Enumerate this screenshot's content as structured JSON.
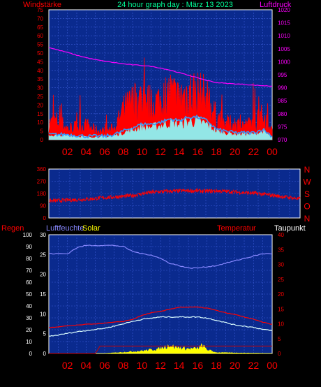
{
  "title": "24 hour graph day : März 13 2023",
  "chart_data": [
    {
      "type": "line",
      "name": "wind-pressure",
      "left_label": "Windstärke",
      "right_label": "Luftdruck",
      "ylim_left": [
        0,
        75
      ],
      "yticks_left": [
        "0",
        "5",
        "10",
        "15",
        "20",
        "25",
        "30",
        "35",
        "40",
        "45",
        "50",
        "55",
        "60",
        "65",
        "70",
        "75"
      ],
      "ylim_right": [
        970,
        1020
      ],
      "yticks_right": [
        "970",
        "975",
        "980",
        "985",
        "990",
        "995",
        "1000",
        "1005",
        "1010",
        "1015",
        "1020"
      ],
      "xticks": [
        "02",
        "04",
        "06",
        "08",
        "10",
        "12",
        "14",
        "16",
        "18",
        "20",
        "22",
        "00"
      ],
      "series": [
        {
          "key": "gust",
          "color": "#ff0000",
          "x": [
            0,
            1,
            2,
            3,
            4,
            5,
            6,
            7,
            7.5,
            8,
            9,
            10,
            11,
            12,
            13,
            14,
            15,
            16,
            17,
            18,
            19,
            20,
            21,
            22,
            23,
            23.5,
            24
          ],
          "y": [
            10,
            12,
            7,
            8,
            9,
            6,
            5,
            7,
            12,
            18,
            23,
            26,
            22,
            24,
            29,
            25,
            30,
            29,
            25,
            14,
            10,
            10,
            9,
            10,
            15,
            12,
            5
          ]
        },
        {
          "key": "wind",
          "color": "#3399ff",
          "x": [
            0,
            2,
            4,
            6,
            7,
            8,
            9,
            10,
            11,
            12,
            13,
            14,
            15,
            16,
            17,
            18,
            19,
            20,
            21,
            22,
            23,
            24
          ],
          "y": [
            3,
            3,
            2,
            2,
            3,
            5,
            7,
            9,
            9,
            10,
            12,
            11,
            13,
            13,
            11,
            6,
            5,
            4,
            4,
            4,
            6,
            2
          ]
        },
        {
          "key": "pressure",
          "color": "#ff00ff",
          "x": [
            0,
            1,
            2,
            3,
            4,
            5,
            6,
            7,
            8,
            9,
            10,
            11,
            12,
            13,
            14,
            15,
            16,
            17,
            18,
            19,
            20,
            21,
            22,
            23,
            24
          ],
          "y": [
            1005.5,
            1004.5,
            1003.6,
            1002.5,
            1001.6,
            1000.8,
            1000.2,
            999.7,
            999.2,
            998.8,
            998.6,
            998.2,
            997.6,
            996.8,
            995.8,
            994.8,
            993.8,
            992.8,
            992.0,
            991.7,
            991.5,
            991.3,
            991.0,
            990.8,
            990.6
          ]
        }
      ]
    },
    {
      "type": "line",
      "name": "wind-direction",
      "ylim": [
        0,
        360
      ],
      "yticks": [
        "0",
        "90",
        "180",
        "270",
        "360"
      ],
      "direction_labels": [
        "N",
        "W",
        "S",
        "O",
        "N"
      ],
      "series": [
        {
          "key": "direction",
          "color": "#ff0000",
          "x": [
            0,
            1,
            2,
            3,
            4,
            5,
            6,
            7,
            8,
            9,
            10,
            11,
            12,
            13,
            14,
            15,
            16,
            17,
            18,
            19,
            20,
            21,
            22,
            23,
            24
          ],
          "y": [
            125,
            128,
            132,
            135,
            140,
            148,
            152,
            158,
            165,
            180,
            190,
            195,
            198,
            200,
            200,
            197,
            200,
            195,
            190,
            185,
            180,
            170,
            160,
            150,
            140
          ]
        }
      ]
    },
    {
      "type": "line",
      "name": "humidity-temp",
      "left_label": "Regen",
      "label_humidity": "Luftfeuchte",
      "label_solar": "Solar",
      "label_temp": "Temperatur",
      "label_dew": "Taupunkt",
      "ylim_rain": [
        0,
        100
      ],
      "yticks_rain": [
        "0",
        "10",
        "20",
        "30",
        "40",
        "50",
        "60",
        "70",
        "80",
        "90",
        "100"
      ],
      "ylim_humidity": [
        0,
        30
      ],
      "yticks_humidity": [
        "0",
        "5",
        "10",
        "15",
        "20",
        "25",
        "30"
      ],
      "ylim_temp": [
        0,
        40
      ],
      "yticks_temp": [
        "0",
        "5",
        "10",
        "15",
        "20",
        "25",
        "30",
        "35",
        "40"
      ],
      "xticks": [
        "02",
        "04",
        "06",
        "08",
        "10",
        "12",
        "14",
        "16",
        "18",
        "20",
        "22",
        "00"
      ],
      "series": [
        {
          "key": "humidity",
          "color": "#8888ff",
          "x": [
            0,
            1,
            2,
            3,
            4,
            5,
            6,
            7,
            8,
            9,
            10,
            11,
            12,
            13,
            14,
            15,
            16,
            17,
            18,
            19,
            20,
            21,
            22,
            23,
            24
          ],
          "y": [
            84,
            84,
            84,
            89,
            91,
            91,
            91,
            91,
            90,
            86,
            84,
            83,
            80,
            76,
            74,
            72,
            72,
            73,
            74,
            76,
            78,
            80,
            82,
            84,
            84
          ]
        },
        {
          "key": "temp",
          "color": "#ff0000",
          "x": [
            0,
            1,
            2,
            3,
            4,
            5,
            6,
            7,
            8,
            9,
            10,
            11,
            12,
            13,
            14,
            15,
            16,
            17,
            18,
            19,
            20,
            21,
            22,
            23,
            24
          ],
          "y": [
            8.7,
            8.9,
            9.3,
            9.5,
            9.8,
            10.0,
            10.2,
            10.5,
            10.8,
            11.5,
            12.8,
            13.7,
            14.1,
            14.9,
            15.6,
            15.6,
            15.6,
            15.3,
            14.5,
            13.7,
            13.1,
            12.3,
            11.5,
            10.5,
            9.8
          ]
        },
        {
          "key": "dew",
          "color": "#ddffff",
          "x": [
            0,
            1,
            2,
            3,
            4,
            5,
            6,
            7,
            8,
            9,
            10,
            11,
            12,
            13,
            14,
            15,
            16,
            17,
            18,
            19,
            20,
            21,
            22,
            23,
            24
          ],
          "y": [
            5.8,
            6.2,
            6.8,
            7.3,
            7.7,
            8.1,
            8.5,
            9.2,
            10.0,
            10.8,
            11.5,
            11.9,
            12.3,
            12.3,
            12.3,
            12.3,
            12.3,
            11.9,
            11.2,
            10.4,
            9.6,
            9.2,
            8.8,
            8.1,
            7.7
          ]
        },
        {
          "key": "solar",
          "color": "#ffff00",
          "x": [
            0,
            6,
            7,
            8,
            9,
            10,
            11,
            12,
            12.5,
            13,
            13.5,
            14,
            15,
            16,
            16.5,
            17,
            18,
            24
          ],
          "y": [
            0,
            0,
            0.2,
            0.4,
            0.6,
            0.8,
            1.2,
            1.5,
            2.2,
            2.8,
            2.0,
            1.8,
            1.5,
            1.6,
            2.6,
            1.2,
            0.3,
            0
          ]
        },
        {
          "key": "rain",
          "color": "#cc0000",
          "x": [
            0,
            5,
            5.5,
            24
          ],
          "y": [
            0,
            0,
            2.5,
            2.5
          ]
        }
      ]
    }
  ]
}
